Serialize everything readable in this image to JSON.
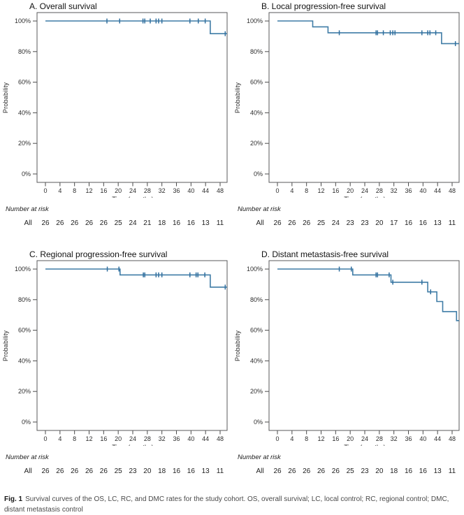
{
  "figure": {
    "caption_label": "Fig. 1",
    "caption_text": "Survival curves of the OS, LC, RC, and DMC rates for the study cohort. OS, overall survival; LC, local control; RC, regional control; DMC, distant metastasis control"
  },
  "shared": {
    "at_risk_header": "Number at risk",
    "line_color": "#3f7ca6",
    "censor_color": "#2f6e9e",
    "axis_color": "#4a4a4a",
    "box_color": "#59595b"
  },
  "chart_data": [
    {
      "type": "line",
      "subtype": "kaplan-meier-step",
      "title": "A. Overall survival",
      "xlabel": "Time (months)",
      "ylabel": "Probability",
      "x_ticks": [
        0,
        4,
        8,
        12,
        16,
        20,
        24,
        28,
        32,
        36,
        40,
        44,
        48
      ],
      "y_ticks": [
        100,
        80,
        60,
        40,
        20,
        0
      ],
      "xlim": [
        -2.3,
        49.9
      ],
      "ylim": [
        -5.5,
        105.5
      ],
      "series": [
        {
          "name": "All",
          "step_points": [
            [
              0,
              100
            ],
            [
              45.3,
              91.7
            ],
            [
              49.9,
              91.7
            ]
          ],
          "censor_marks": [
            [
              16.9,
              100
            ],
            [
              20.4,
              100
            ],
            [
              26.8,
              100
            ],
            [
              27.3,
              100
            ],
            [
              28.8,
              100
            ],
            [
              30.4,
              100
            ],
            [
              31.1,
              100
            ],
            [
              32.0,
              100
            ],
            [
              39.7,
              100
            ],
            [
              42.0,
              100
            ],
            [
              43.9,
              100
            ],
            [
              49.4,
              91.7
            ]
          ]
        }
      ],
      "number_at_risk": {
        "label": "All",
        "times": [
          0,
          4,
          8,
          12,
          16,
          20,
          24,
          28,
          32,
          36,
          40,
          44,
          48
        ],
        "values": [
          26,
          26,
          26,
          26,
          26,
          25,
          24,
          21,
          18,
          16,
          16,
          13,
          11
        ]
      }
    },
    {
      "type": "line",
      "subtype": "kaplan-meier-step",
      "title": "B. Local progression-free survival",
      "xlabel": "Time (months)",
      "ylabel": "Probability",
      "x_ticks": [
        0,
        4,
        8,
        12,
        16,
        20,
        24,
        28,
        32,
        36,
        40,
        44,
        48
      ],
      "y_ticks": [
        100,
        80,
        60,
        40,
        20,
        0
      ],
      "xlim": [
        -2.3,
        49.9
      ],
      "ylim": [
        -5.5,
        105.5
      ],
      "series": [
        {
          "name": "All",
          "step_points": [
            [
              0,
              100
            ],
            [
              9.7,
              96.2
            ],
            [
              13.9,
              92.3
            ],
            [
              45.1,
              85.2
            ],
            [
              49.9,
              85.2
            ]
          ],
          "censor_marks": [
            [
              17.0,
              92.3
            ],
            [
              27.1,
              92.3
            ],
            [
              27.5,
              92.3
            ],
            [
              29.1,
              92.3
            ],
            [
              31.0,
              92.3
            ],
            [
              31.7,
              92.3
            ],
            [
              32.3,
              92.3
            ],
            [
              39.7,
              92.3
            ],
            [
              41.3,
              92.3
            ],
            [
              41.9,
              92.3
            ],
            [
              43.5,
              92.3
            ],
            [
              48.9,
              85.2
            ]
          ]
        }
      ],
      "number_at_risk": {
        "label": "All",
        "times": [
          0,
          4,
          8,
          12,
          16,
          20,
          24,
          28,
          32,
          36,
          40,
          44,
          48
        ],
        "values": [
          26,
          26,
          26,
          25,
          24,
          23,
          23,
          20,
          17,
          16,
          16,
          13,
          11
        ]
      }
    },
    {
      "type": "line",
      "subtype": "kaplan-meier-step",
      "title": "C. Regional progression-free survival",
      "xlabel": "Time (months)",
      "ylabel": "Probability",
      "x_ticks": [
        0,
        4,
        8,
        12,
        16,
        20,
        24,
        28,
        32,
        36,
        40,
        44,
        48
      ],
      "y_ticks": [
        100,
        80,
        60,
        40,
        20,
        0
      ],
      "xlim": [
        -2.3,
        49.9
      ],
      "ylim": [
        -5.5,
        105.5
      ],
      "series": [
        {
          "name": "All",
          "step_points": [
            [
              0,
              100
            ],
            [
              20.5,
              96.2
            ],
            [
              45.3,
              88.2
            ],
            [
              49.9,
              88.2
            ]
          ],
          "censor_marks": [
            [
              17.0,
              100
            ],
            [
              20.2,
              100
            ],
            [
              26.9,
              96.2
            ],
            [
              27.3,
              96.2
            ],
            [
              30.4,
              96.2
            ],
            [
              31.1,
              96.2
            ],
            [
              32.0,
              96.2
            ],
            [
              39.7,
              96.2
            ],
            [
              41.4,
              96.2
            ],
            [
              41.9,
              96.2
            ],
            [
              43.8,
              96.2
            ],
            [
              49.4,
              88.2
            ]
          ]
        }
      ],
      "number_at_risk": {
        "label": "All",
        "times": [
          0,
          4,
          8,
          12,
          16,
          20,
          24,
          28,
          32,
          36,
          40,
          44,
          48
        ],
        "values": [
          26,
          26,
          26,
          26,
          26,
          25,
          23,
          20,
          18,
          16,
          16,
          13,
          11
        ]
      }
    },
    {
      "type": "line",
      "subtype": "kaplan-meier-step",
      "title": "D. Distant metastasis-free survival",
      "xlabel": "Time (months)",
      "ylabel": "Probability",
      "x_ticks": [
        0,
        4,
        8,
        12,
        16,
        20,
        24,
        28,
        32,
        36,
        40,
        44,
        48
      ],
      "y_ticks": [
        100,
        80,
        60,
        40,
        20,
        0
      ],
      "xlim": [
        -2.3,
        49.9
      ],
      "ylim": [
        -5.5,
        105.5
      ],
      "series": [
        {
          "name": "All",
          "step_points": [
            [
              0,
              100
            ],
            [
              20.7,
              96.2
            ],
            [
              31.2,
              91.4
            ],
            [
              41.3,
              85.1
            ],
            [
              43.8,
              78.8
            ],
            [
              45.4,
              72.2
            ],
            [
              49.2,
              66.3
            ],
            [
              49.9,
              66.3
            ]
          ],
          "censor_marks": [
            [
              17.0,
              100
            ],
            [
              20.3,
              100
            ],
            [
              27.1,
              96.2
            ],
            [
              27.5,
              96.2
            ],
            [
              30.7,
              96.2
            ],
            [
              31.7,
              91.4
            ],
            [
              39.7,
              91.4
            ],
            [
              42.1,
              85.1
            ]
          ]
        }
      ],
      "number_at_risk": {
        "label": "All",
        "times": [
          0,
          4,
          8,
          12,
          16,
          20,
          24,
          28,
          32,
          36,
          40,
          44,
          48
        ],
        "values": [
          26,
          26,
          26,
          26,
          26,
          25,
          23,
          20,
          18,
          16,
          16,
          13,
          11
        ]
      }
    }
  ]
}
